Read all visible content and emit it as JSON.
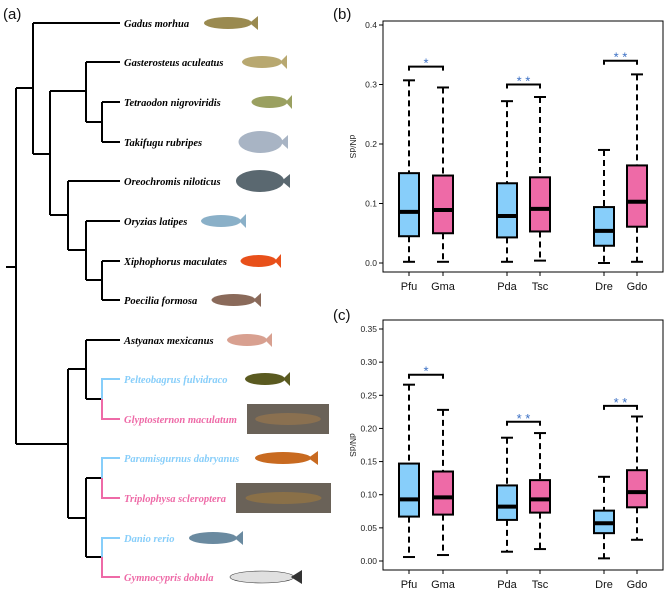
{
  "panel_labels": {
    "a": "(a)",
    "b": "(b)",
    "c": "(c)"
  },
  "colors": {
    "branch": "#000000",
    "blue": "#87CEFA",
    "pink": "#EE6AA7",
    "star": "#3a6fc4"
  },
  "tree": {
    "leaves": [
      {
        "name": "Gadus morhua",
        "color": "black",
        "icon": "cod-fish-icon",
        "fish": "#9a8a50"
      },
      {
        "name": "Gasterosteus aculeatus",
        "color": "black",
        "icon": "stickleback-fish-icon",
        "fish": "#b8a870"
      },
      {
        "name": "Tetraodon nigroviridis",
        "color": "black",
        "icon": "pufferfish-spotted-icon",
        "fish": "#9aa060"
      },
      {
        "name": "Takifugu rubripes",
        "color": "black",
        "icon": "pufferfish-icon",
        "fish": "#a8b4c4"
      },
      {
        "name": "Oreochromis niloticus",
        "color": "black",
        "icon": "tilapia-fish-icon",
        "fish": "#5a6870"
      },
      {
        "name": "Oryzias latipes",
        "color": "black",
        "icon": "medaka-fish-icon",
        "fish": "#8ab0c8"
      },
      {
        "name": "Xiphophorus maculates",
        "color": "black",
        "icon": "platyfish-icon",
        "fish": "#e8501a"
      },
      {
        "name": "Poecilia formosa",
        "color": "black",
        "icon": "molly-fish-icon",
        "fish": "#8a6a5a"
      },
      {
        "name": "Astyanax mexicanus",
        "color": "black",
        "icon": "cavefish-icon",
        "fish": "#d8a090"
      },
      {
        "name": "Pelteobagrus fulvidraco",
        "color": "blue",
        "icon": "catfish-icon",
        "fish": "#5a5a20"
      },
      {
        "name": "Glyptosternon maculatum",
        "color": "pink",
        "icon": "glyptosternon-photo-icon",
        "fish": "#8a7050"
      },
      {
        "name": "Paramisgurnus dabryanus",
        "color": "blue",
        "icon": "loach-fish-icon",
        "fish": "#c86a20"
      },
      {
        "name": "Triplophysa scleroptera",
        "color": "pink",
        "icon": "triplophysa-photo-icon",
        "fish": "#8a7048"
      },
      {
        "name": "Danio rerio",
        "color": "blue",
        "icon": "zebrafish-icon",
        "fish": "#6a8aa0"
      },
      {
        "name": "Gymnocypris dobula",
        "color": "pink",
        "icon": "gymnocypris-drawing-icon",
        "fish": "#e0e0e0"
      }
    ]
  },
  "chart_data": [
    {
      "type": "box",
      "panel": "(b)",
      "ylabel": "dN/dS",
      "ylim": [
        0,
        0.4
      ],
      "yticks": [
        "0.0",
        "0.1",
        "0.2",
        "0.3",
        "0.4"
      ],
      "ytick_values": [
        0,
        0.1,
        0.2,
        0.3,
        0.4
      ],
      "categories": [
        "Pfu",
        "Gma",
        "Pda",
        "Tsc",
        "Dre",
        "Gdo"
      ],
      "fill": [
        "blue",
        "pink",
        "blue",
        "pink",
        "blue",
        "pink"
      ],
      "boxes": [
        {
          "min": 0.002,
          "q1": 0.045,
          "median": 0.086,
          "q3": 0.151,
          "max": 0.307
        },
        {
          "min": 0.002,
          "q1": 0.05,
          "median": 0.089,
          "q3": 0.147,
          "max": 0.295
        },
        {
          "min": 0.002,
          "q1": 0.043,
          "median": 0.079,
          "q3": 0.134,
          "max": 0.272
        },
        {
          "min": 0.004,
          "q1": 0.053,
          "median": 0.091,
          "q3": 0.144,
          "max": 0.279
        },
        {
          "min": 0.0,
          "q1": 0.029,
          "median": 0.054,
          "q3": 0.094,
          "max": 0.19
        },
        {
          "min": 0.002,
          "q1": 0.061,
          "median": 0.103,
          "q3": 0.164,
          "max": 0.317
        }
      ],
      "significance": [
        {
          "pair": [
            0,
            1
          ],
          "y": 0.33,
          "label": "*"
        },
        {
          "pair": [
            2,
            3
          ],
          "y": 0.3,
          "label": "* *"
        },
        {
          "pair": [
            4,
            5
          ],
          "y": 0.34,
          "label": "* *"
        }
      ]
    },
    {
      "type": "box",
      "panel": "(c)",
      "ylabel": "dN/dS",
      "ylim": [
        0,
        0.35
      ],
      "yticks": [
        "0.00",
        "0.05",
        "0.10",
        "0.15",
        "0.20",
        "0.25",
        "0.30",
        "0.35"
      ],
      "ytick_values": [
        0,
        0.05,
        0.1,
        0.15,
        0.2,
        0.25,
        0.3,
        0.35
      ],
      "categories": [
        "Pfu",
        "Gma",
        "Pda",
        "Tsc",
        "Dre",
        "Gdo"
      ],
      "fill": [
        "blue",
        "pink",
        "blue",
        "pink",
        "blue",
        "pink"
      ],
      "boxes": [
        {
          "min": 0.006,
          "q1": 0.067,
          "median": 0.093,
          "q3": 0.147,
          "max": 0.266
        },
        {
          "min": 0.009,
          "q1": 0.07,
          "median": 0.096,
          "q3": 0.135,
          "max": 0.228
        },
        {
          "min": 0.014,
          "q1": 0.062,
          "median": 0.082,
          "q3": 0.114,
          "max": 0.186
        },
        {
          "min": 0.018,
          "q1": 0.073,
          "median": 0.093,
          "q3": 0.122,
          "max": 0.193
        },
        {
          "min": 0.004,
          "q1": 0.042,
          "median": 0.057,
          "q3": 0.076,
          "max": 0.127
        },
        {
          "min": 0.032,
          "q1": 0.081,
          "median": 0.104,
          "q3": 0.137,
          "max": 0.218
        }
      ],
      "significance": [
        {
          "pair": [
            0,
            1
          ],
          "y": 0.281,
          "label": "*"
        },
        {
          "pair": [
            2,
            3
          ],
          "y": 0.21,
          "label": "* *"
        },
        {
          "pair": [
            4,
            5
          ],
          "y": 0.234,
          "label": "* *"
        }
      ]
    }
  ]
}
